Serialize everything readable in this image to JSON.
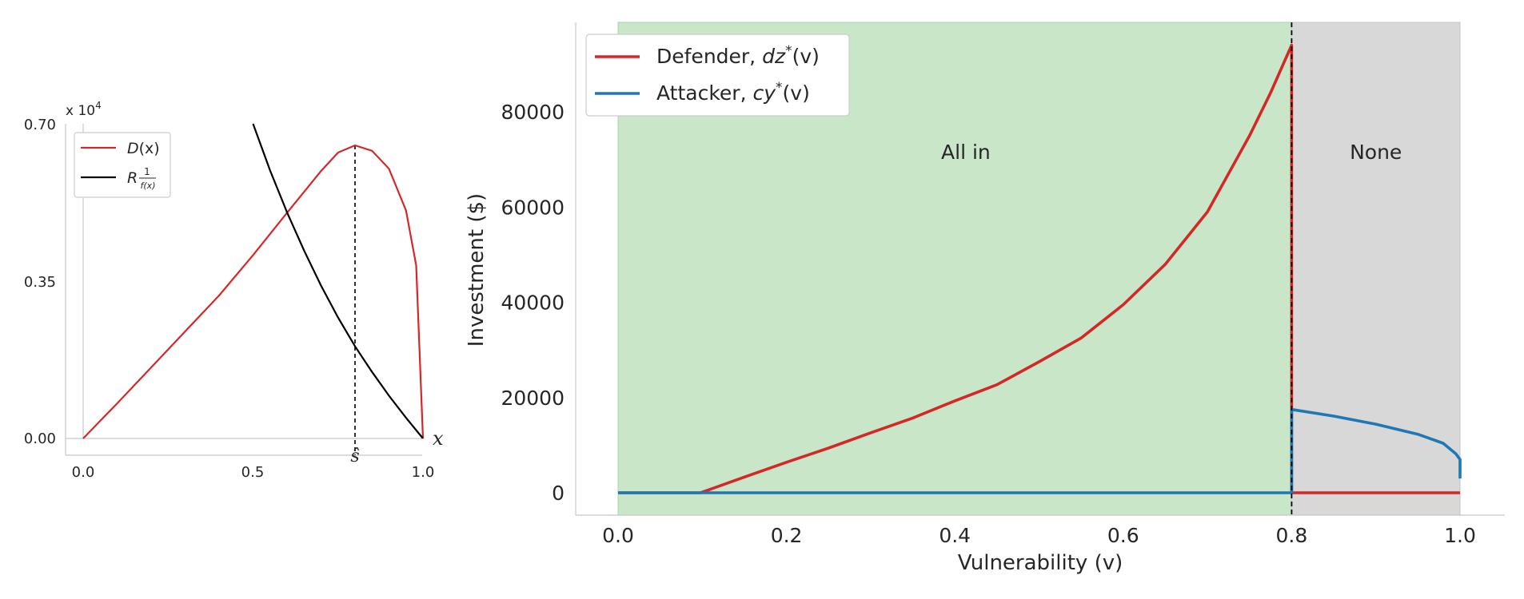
{
  "colors": {
    "defender": "#d62728",
    "attacker": "#1f77b4",
    "black": "#000000",
    "all_in_region": "#c9e7c8",
    "none_region": "#d8d8d8",
    "spine": "#c8c8c8"
  },
  "chart_data": [
    {
      "type": "line",
      "title": "",
      "xlabel": "x",
      "ylabel": "",
      "y_scale_label": "x 10",
      "y_scale_exp": "4",
      "xlim": [
        0.0,
        1.0
      ],
      "ylim": [
        0.0,
        0.7
      ],
      "xticks": [
        "0.0",
        "0.5",
        "1.0"
      ],
      "yticks": [
        "0.00",
        "0.35",
        "0.70"
      ],
      "marker_label": "ŝ",
      "marker_x": 0.8,
      "legend_position": "top-left",
      "grid": false,
      "legend": [
        {
          "name_main": "D",
          "name_rest": "(x)",
          "color": "#d62728"
        },
        {
          "name_main": "R",
          "name_frac_num": "1",
          "name_frac_den": "f(x)",
          "color": "#000000"
        }
      ],
      "series": [
        {
          "name": "D(x)",
          "color": "#d62728",
          "x": [
            0.0,
            0.1,
            0.2,
            0.3,
            0.4,
            0.5,
            0.6,
            0.7,
            0.75,
            0.8,
            0.85,
            0.9,
            0.95,
            0.98,
            1.0
          ],
          "y": [
            0.0,
            0.078,
            0.158,
            0.238,
            0.318,
            0.408,
            0.502,
            0.595,
            0.636,
            0.652,
            0.64,
            0.6,
            0.507,
            0.385,
            0.0
          ]
        },
        {
          "name": "R 1/f(x)",
          "color": "#000000",
          "x": [
            0.5,
            0.55,
            0.6,
            0.65,
            0.7,
            0.75,
            0.8,
            0.85,
            0.9,
            0.95,
            1.0
          ],
          "y": [
            0.7,
            0.596,
            0.503,
            0.418,
            0.34,
            0.269,
            0.205,
            0.148,
            0.095,
            0.046,
            0.0
          ]
        }
      ]
    },
    {
      "type": "line",
      "title": "",
      "xlabel": "Vulnerability (v)",
      "ylabel": "Investment ($)",
      "xlim": [
        -0.05,
        1.05
      ],
      "ylim": [
        -4500,
        99000
      ],
      "xticks": [
        "0.0",
        "0.2",
        "0.4",
        "0.6",
        "0.8",
        "1.0"
      ],
      "yticks": [
        "0",
        "20000",
        "40000",
        "60000",
        "80000"
      ],
      "threshold_x": 0.8,
      "legend_position": "top-left",
      "grid": false,
      "regions": [
        {
          "label": "All in",
          "x_from": 0.0,
          "x_to": 0.8,
          "color": "#c9e7c8"
        },
        {
          "label": "None",
          "x_from": 0.8,
          "x_to": 1.0,
          "color": "#d8d8d8"
        }
      ],
      "legend": [
        {
          "prefix": "Defender, ",
          "var": "dz",
          "sup": "*",
          "arg": "(v)",
          "color": "#d62728"
        },
        {
          "prefix": "Attacker, ",
          "var": "cy",
          "sup": "*",
          "arg": "(v)",
          "color": "#1f77b4"
        }
      ],
      "series": [
        {
          "name": "Defender, dz*(v)",
          "color": "#d62728",
          "x": [
            0.0,
            0.098,
            0.15,
            0.2,
            0.25,
            0.3,
            0.35,
            0.4,
            0.45,
            0.5,
            0.55,
            0.6,
            0.65,
            0.7,
            0.75,
            0.775,
            0.8,
            0.8,
            1.0
          ],
          "y": [
            0,
            0,
            3300,
            6400,
            9400,
            12600,
            15700,
            19300,
            22700,
            27500,
            32500,
            39500,
            48000,
            59000,
            75000,
            84000,
            94000,
            0,
            0
          ]
        },
        {
          "name": "Attacker, cy*(v)",
          "color": "#1f77b4",
          "x": [
            0.0,
            0.8,
            0.8,
            0.85,
            0.9,
            0.95,
            0.98,
            0.995,
            1.0,
            1.0
          ],
          "y": [
            0,
            0,
            17500,
            16100,
            14400,
            12300,
            10400,
            8200,
            7000,
            3000
          ]
        }
      ]
    }
  ]
}
